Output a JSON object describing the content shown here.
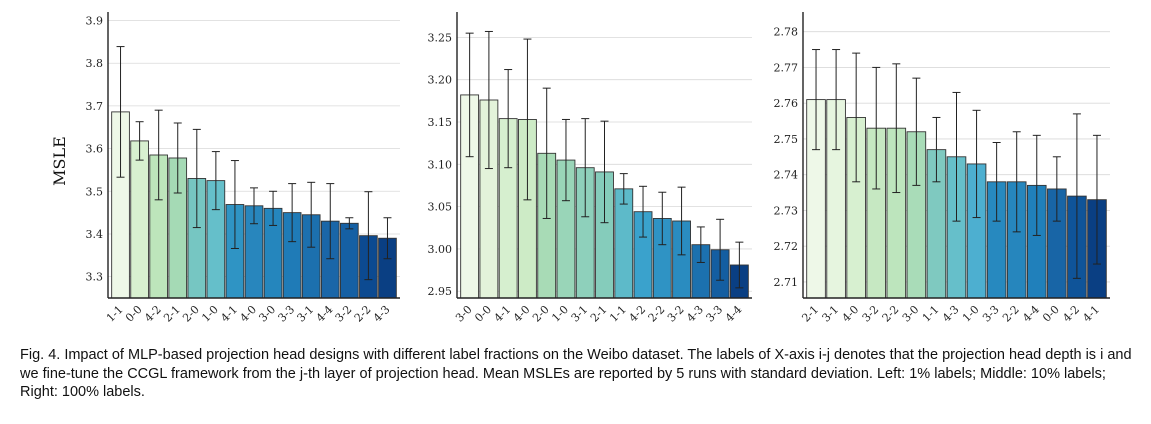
{
  "chart_data": [
    {
      "type": "bar",
      "ylabel": "MSLE",
      "ylim": [
        3.25,
        3.92
      ],
      "yticks": [
        3.3,
        3.4,
        3.5,
        3.6,
        3.7,
        3.8,
        3.9
      ],
      "grid": true,
      "categories": [
        "1-1",
        "0-0",
        "4-2",
        "2-1",
        "2-0",
        "1-0",
        "4-1",
        "4-0",
        "3-0",
        "3-3",
        "3-1",
        "4-4",
        "3-2",
        "2-2",
        "4-3"
      ],
      "values": [
        3.686,
        3.618,
        3.585,
        3.578,
        3.53,
        3.525,
        3.469,
        3.466,
        3.46,
        3.45,
        3.445,
        3.43,
        3.425,
        3.396,
        3.39
      ],
      "errors": [
        0.153,
        0.045,
        0.105,
        0.082,
        0.115,
        0.068,
        0.103,
        0.042,
        0.04,
        0.068,
        0.076,
        0.088,
        0.013,
        0.103,
        0.048
      ],
      "colors": [
        "#eef8e8",
        "#d8f0d0",
        "#bde5bb",
        "#a5dab5",
        "#76c6c2",
        "#65bfca",
        "#2f94c4",
        "#2886bd",
        "#2586bd",
        "#1f7bb7",
        "#1c70ae",
        "#1a66a8",
        "#1560a4",
        "#0c4a91",
        "#0a3f83"
      ]
    },
    {
      "type": "bar",
      "ylabel": "",
      "ylim": [
        2.942,
        3.28
      ],
      "yticks": [
        2.95,
        3.0,
        3.05,
        3.1,
        3.15,
        3.2,
        3.25
      ],
      "grid": true,
      "categories": [
        "3-0",
        "0-0",
        "4-1",
        "4-0",
        "2-0",
        "1-0",
        "3-1",
        "2-1",
        "1-1",
        "4-2",
        "2-2",
        "3-2",
        "4-3",
        "3-3",
        "4-4"
      ],
      "values": [
        3.182,
        3.176,
        3.154,
        3.153,
        3.113,
        3.105,
        3.096,
        3.091,
        3.071,
        3.044,
        3.036,
        3.033,
        3.005,
        2.999,
        2.981
      ],
      "errors": [
        0.073,
        0.081,
        0.058,
        0.095,
        0.077,
        0.048,
        0.058,
        0.06,
        0.018,
        0.03,
        0.031,
        0.04,
        0.021,
        0.036,
        0.027
      ],
      "colors": [
        "#eef8e8",
        "#e3f3da",
        "#d6efcf",
        "#cdebc6",
        "#a8dbb6",
        "#99d5b8",
        "#8ed0bb",
        "#85ccbb",
        "#5dbac9",
        "#3aa2cc",
        "#2f93c4",
        "#2a8cc0",
        "#1c71af",
        "#145ea1",
        "#0a3f83"
      ]
    },
    {
      "type": "bar",
      "ylabel": "",
      "ylim": [
        2.7055,
        2.7855
      ],
      "yticks": [
        2.71,
        2.72,
        2.73,
        2.74,
        2.75,
        2.76,
        2.77,
        2.78
      ],
      "grid": true,
      "categories": [
        "2-1",
        "3-1",
        "4-0",
        "3-2",
        "2-2",
        "3-0",
        "1-1",
        "4-3",
        "1-0",
        "3-3",
        "2-2",
        "4-4",
        "0-0",
        "4-2",
        "4-1"
      ],
      "values": [
        2.761,
        2.761,
        2.756,
        2.753,
        2.753,
        2.752,
        2.747,
        2.745,
        2.743,
        2.738,
        2.738,
        2.737,
        2.736,
        2.734,
        2.733
      ],
      "errors": [
        0.014,
        0.014,
        0.018,
        0.017,
        0.018,
        0.015,
        0.009,
        0.018,
        0.015,
        0.011,
        0.014,
        0.014,
        0.009,
        0.023,
        0.018
      ],
      "colors": [
        "#eef8e8",
        "#e6f5df",
        "#d7f0d0",
        "#c6e8c2",
        "#bde5bd",
        "#a9dcb8",
        "#7fc9c0",
        "#66bfca",
        "#4dafd0",
        "#2789bf",
        "#2686bd",
        "#2080bb",
        "#1865a6",
        "#0f5499",
        "#0a3f83"
      ]
    }
  ],
  "caption": "Fig. 4. Impact of MLP-based projection head designs with different label fractions on the Weibo dataset. The labels of X-axis i-j denotes that the projection head depth is i and we fine-tune the CCGL framework from the j-th layer of projection head. Mean MSLEs are reported by 5 runs with standard deviation. Left: 1% labels; Middle: 10% labels; Right: 100% labels."
}
